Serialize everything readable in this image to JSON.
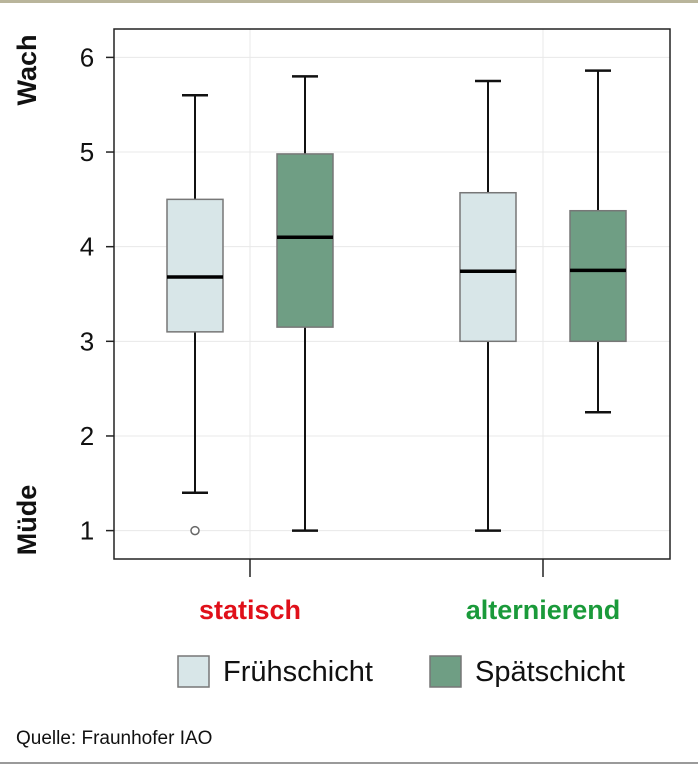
{
  "chart_data": {
    "type": "boxplot",
    "y_range": [
      0.7,
      6.3
    ],
    "y_ticks": [
      1,
      2,
      3,
      4,
      5,
      6
    ],
    "y_tick_labels": [
      "1",
      "2",
      "3",
      "4",
      "5",
      "6"
    ],
    "y_top_label": "Wach",
    "y_bottom_label": "Müde",
    "grid": true,
    "legend_position": "bottom",
    "categories": [
      {
        "label": "statisch",
        "color": "#e0101a"
      },
      {
        "label": "alternierend",
        "color": "#1a9a3a"
      }
    ],
    "series": [
      {
        "name": "Frühschicht",
        "color": "#d8e6e8",
        "boxes": [
          {
            "min": 1.4,
            "q1": 3.1,
            "median": 3.68,
            "q3": 4.5,
            "max": 5.6,
            "outliers": [
              1.0
            ]
          },
          {
            "min": 1.0,
            "q1": 3.0,
            "median": 3.74,
            "q3": 4.57,
            "max": 5.75,
            "outliers": []
          }
        ]
      },
      {
        "name": "Spätschicht",
        "color": "#6f9e84",
        "boxes": [
          {
            "min": 1.0,
            "q1": 3.15,
            "median": 4.1,
            "q3": 4.98,
            "max": 5.8,
            "outliers": []
          },
          {
            "min": 2.25,
            "q1": 3.0,
            "median": 3.75,
            "q3": 4.38,
            "max": 5.86,
            "outliers": []
          }
        ]
      }
    ]
  },
  "source": "Quelle: Fraunhofer IAO"
}
